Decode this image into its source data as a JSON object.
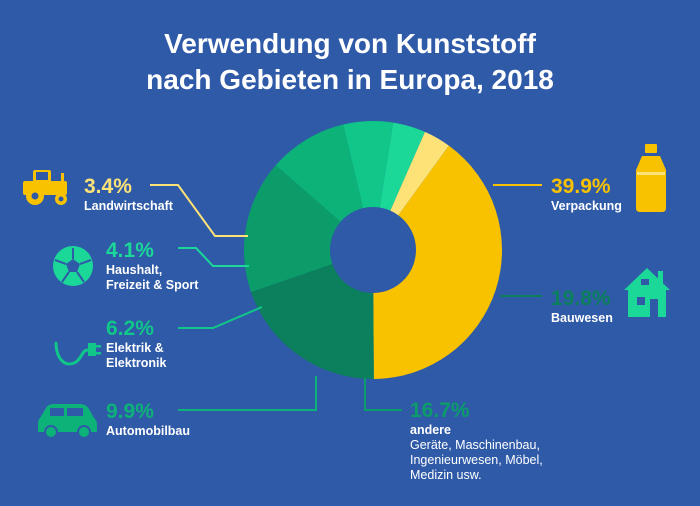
{
  "title_line1": "Verwendung von Kunststoff",
  "title_line2": "nach Gebieten in Europa, 2018",
  "chart_data": {
    "type": "pie",
    "title": "Verwendung von Kunststoff nach Gebieten in Europa, 2018",
    "unit": "%",
    "slices": [
      {
        "label": "Verpackung",
        "value": 39.9,
        "value_label": "39.9%",
        "color": "#f9c200",
        "icon": "bottle-icon"
      },
      {
        "label": "Bauwesen",
        "value": 19.8,
        "value_label": "19.8%",
        "color": "#0c7f5c",
        "icon": "house-icon"
      },
      {
        "label": "andere",
        "sublabel": [
          "Geräte, Maschinenbau,",
          "Ingenieurwesen, Möbel,",
          "Medizin usw."
        ],
        "value": 16.7,
        "value_label": "16.7%",
        "color": "#0b9c6a",
        "icon": ""
      },
      {
        "label": "Automobilbau",
        "value": 9.9,
        "value_label": "9.9%",
        "color": "#0cb277",
        "icon": "car-icon"
      },
      {
        "label": "Elektrik & Elektronik",
        "value": 6.2,
        "value_label": "6.2%",
        "color": "#10c688",
        "icon": "plug-icon"
      },
      {
        "label": "Haushalt, Freizeit & Sport",
        "value": 4.1,
        "value_label": "4.1%",
        "color": "#1bd899",
        "icon": "ball-icon"
      },
      {
        "label": "Landwirtschaft",
        "value": 3.4,
        "value_label": "3.4%",
        "color": "#fde277",
        "icon": "tractor-icon"
      }
    ]
  }
}
